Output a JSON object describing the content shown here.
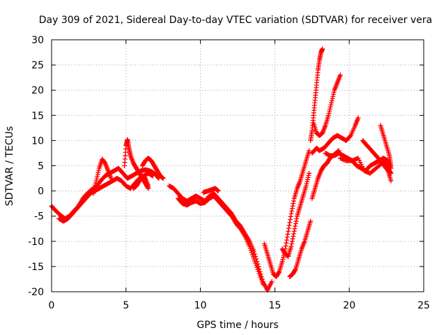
{
  "chart_data": {
    "type": "scatter",
    "title": "Day 309 of 2021, Sidereal Day-to-day VTEC variation (SDTVAR) for receiver vera",
    "xlabel": "GPS time / hours",
    "ylabel": "SDTVAR / TECUs",
    "xlim": [
      0,
      25
    ],
    "ylim": [
      -20,
      30
    ],
    "xticks": [
      "0",
      "5",
      "10",
      "15",
      "20",
      "25"
    ],
    "yticks": [
      "-20",
      "-15",
      "-10",
      "-5",
      "0",
      "5",
      "10",
      "15",
      "20",
      "25",
      "30"
    ],
    "grid": true,
    "marker": "+",
    "color": "#ff0000",
    "series": [
      {
        "x": [
          0.0,
          0.3,
          0.6,
          0.9,
          1.2,
          1.5,
          1.8,
          2.1,
          2.4,
          2.7,
          3.0,
          3.3,
          3.6,
          3.9,
          4.2,
          4.5,
          4.8,
          5.1,
          5.4,
          5.7,
          6.0,
          6.3,
          6.6,
          6.9,
          7.2
        ],
        "y": [
          -3.0,
          -4.0,
          -4.8,
          -5.5,
          -5.0,
          -4.0,
          -3.0,
          -1.5,
          -0.5,
          0.3,
          0.8,
          2.0,
          3.0,
          3.5,
          4.0,
          4.5,
          3.5,
          2.5,
          3.0,
          3.5,
          4.0,
          4.2,
          4.0,
          3.5,
          2.5
        ]
      },
      {
        "x": [
          0.5,
          0.8,
          1.1,
          1.4,
          1.7,
          2.0,
          2.3,
          2.6,
          2.9,
          3.2,
          3.5,
          3.8,
          4.1,
          4.4,
          4.7,
          5.0,
          5.3,
          5.6,
          5.9,
          6.2,
          6.5,
          6.8
        ],
        "y": [
          -5.5,
          -6.0,
          -5.5,
          -4.5,
          -3.5,
          -2.5,
          -1.5,
          -0.5,
          0.0,
          0.5,
          1.0,
          1.5,
          2.0,
          2.5,
          2.0,
          1.0,
          0.5,
          1.5,
          2.5,
          3.0,
          3.5,
          3.0
        ]
      },
      {
        "x": [
          2.8,
          3.0,
          3.2,
          3.4,
          3.6,
          3.8,
          4.0
        ],
        "y": [
          -0.5,
          2.0,
          4.5,
          6.3,
          5.5,
          4.0,
          2.5
        ]
      },
      {
        "x": [
          4.9,
          5.0,
          5.1,
          5.2,
          5.3,
          5.5,
          5.7,
          5.9,
          6.1,
          6.3,
          6.5
        ],
        "y": [
          5.0,
          9.0,
          10.2,
          8.5,
          7.0,
          5.5,
          4.5,
          3.5,
          2.5,
          1.5,
          0.5
        ]
      },
      {
        "x": [
          5.5,
          5.7,
          5.9,
          6.1,
          6.3,
          6.5
        ],
        "y": [
          0.5,
          1.0,
          2.0,
          3.0,
          2.5,
          1.0
        ]
      },
      {
        "x": [
          6.1,
          6.3,
          6.5,
          6.7,
          6.9,
          7.1,
          7.3,
          7.5
        ],
        "y": [
          5.0,
          6.0,
          6.5,
          6.0,
          5.0,
          4.0,
          3.0,
          2.5
        ]
      },
      {
        "x": [
          7.9,
          8.2,
          8.5,
          8.8,
          9.1,
          9.4,
          9.7,
          10.0,
          10.3,
          10.6,
          10.9,
          11.2,
          11.5,
          11.8,
          12.1,
          12.4,
          12.7,
          13.0,
          13.3,
          13.6,
          13.9,
          14.2,
          14.5,
          14.8
        ],
        "y": [
          1.0,
          0.5,
          -0.5,
          -1.5,
          -2.0,
          -1.5,
          -1.0,
          -1.5,
          -2.0,
          -1.0,
          -0.5,
          -1.5,
          -2.5,
          -3.5,
          -4.5,
          -6.0,
          -7.0,
          -8.5,
          -10.0,
          -12.0,
          -15.0,
          -18.0,
          -19.7,
          -18.0
        ]
      },
      {
        "x": [
          8.5,
          8.8,
          9.1,
          9.4,
          9.7,
          10.0,
          10.3,
          10.6,
          10.9,
          11.2,
          11.5,
          11.8,
          12.1,
          12.4,
          12.7,
          13.0,
          13.3,
          13.6,
          13.9,
          14.2
        ],
        "y": [
          -1.5,
          -2.5,
          -2.8,
          -2.3,
          -2.0,
          -2.5,
          -2.3,
          -1.5,
          -1.0,
          -2.0,
          -3.0,
          -4.0,
          -5.0,
          -6.5,
          -7.5,
          -9.0,
          -11.0,
          -13.5,
          -16.0,
          -18.5
        ]
      },
      {
        "x": [
          10.2,
          10.5,
          10.8,
          11.0,
          11.2
        ],
        "y": [
          -0.3,
          0.0,
          0.3,
          0.5,
          0.0
        ]
      },
      {
        "x": [
          14.3,
          14.5,
          14.7,
          14.9,
          15.1,
          15.3,
          15.5,
          15.7,
          15.9,
          16.1,
          16.3,
          16.5,
          16.7,
          16.9,
          17.1,
          17.3
        ],
        "y": [
          -10.5,
          -12.5,
          -14.5,
          -16.5,
          -17.0,
          -16.0,
          -14.0,
          -11.5,
          -8.0,
          -4.5,
          -1.5,
          0.5,
          2.0,
          4.0,
          6.0,
          8.0
        ]
      },
      {
        "x": [
          15.5,
          15.7,
          15.9,
          16.1,
          16.3,
          16.5,
          16.7,
          16.9,
          17.1,
          17.3
        ],
        "y": [
          -11.5,
          -12.5,
          -13.0,
          -11.0,
          -8.0,
          -5.0,
          -3.0,
          -1.0,
          1.0,
          3.5
        ]
      },
      {
        "x": [
          16.0,
          16.2,
          16.4,
          16.6,
          16.8,
          17.0,
          17.2,
          17.4
        ],
        "y": [
          -17.0,
          -16.5,
          -15.5,
          -13.5,
          -11.5,
          -10.0,
          -8.0,
          -6.0
        ]
      },
      {
        "x": [
          17.4,
          17.5,
          17.6,
          17.7,
          17.8,
          17.9,
          18.0,
          18.1,
          18.2
        ],
        "y": [
          10.0,
          12.0,
          15.0,
          18.0,
          21.0,
          24.0,
          26.0,
          27.5,
          28.2
        ]
      },
      {
        "x": [
          17.6,
          17.8,
          18.0,
          18.2,
          18.4,
          18.6,
          18.8,
          19.0,
          19.2,
          19.4
        ],
        "y": [
          13.5,
          11.5,
          11.0,
          11.5,
          13.0,
          15.0,
          17.5,
          20.0,
          21.5,
          23.0
        ]
      },
      {
        "x": [
          17.5,
          17.8,
          18.0,
          18.3,
          18.6,
          18.9,
          19.2,
          19.5,
          19.8,
          20.1,
          20.4,
          20.6
        ],
        "y": [
          7.5,
          8.5,
          8.0,
          8.5,
          9.5,
          10.5,
          11.0,
          10.5,
          10.0,
          11.0,
          13.0,
          14.5
        ]
      },
      {
        "x": [
          17.5,
          17.7,
          17.9,
          18.1,
          18.3,
          18.5,
          18.7,
          18.9,
          19.1,
          19.3
        ],
        "y": [
          -1.5,
          0.5,
          2.5,
          4.0,
          5.0,
          5.5,
          6.5,
          7.0,
          7.5,
          8.0
        ]
      },
      {
        "x": [
          18.4,
          18.7,
          19.0,
          19.3,
          19.6,
          19.9,
          20.2,
          20.5,
          20.8,
          21.1,
          21.4,
          21.7,
          22.0,
          22.3,
          22.6,
          22.8
        ],
        "y": [
          7.5,
          7.0,
          7.0,
          7.5,
          7.0,
          6.5,
          6.0,
          5.0,
          4.5,
          4.0,
          5.0,
          5.5,
          6.0,
          6.5,
          6.0,
          4.5
        ]
      },
      {
        "x": [
          19.4,
          19.8,
          20.2,
          20.6,
          21.0,
          21.4,
          21.8,
          22.2,
          22.6,
          22.8
        ],
        "y": [
          6.5,
          6.0,
          6.0,
          6.5,
          4.0,
          3.5,
          4.5,
          5.5,
          4.0,
          2.0
        ]
      },
      {
        "x": [
          20.9,
          21.2,
          21.5,
          21.8,
          22.1,
          22.4,
          22.6,
          22.8
        ],
        "y": [
          10.0,
          9.0,
          8.0,
          7.0,
          6.0,
          5.5,
          4.5,
          3.5
        ]
      },
      {
        "x": [
          22.1,
          22.3,
          22.5,
          22.7,
          22.8
        ],
        "y": [
          13.0,
          11.0,
          9.0,
          7.0,
          5.0
        ]
      }
    ]
  }
}
